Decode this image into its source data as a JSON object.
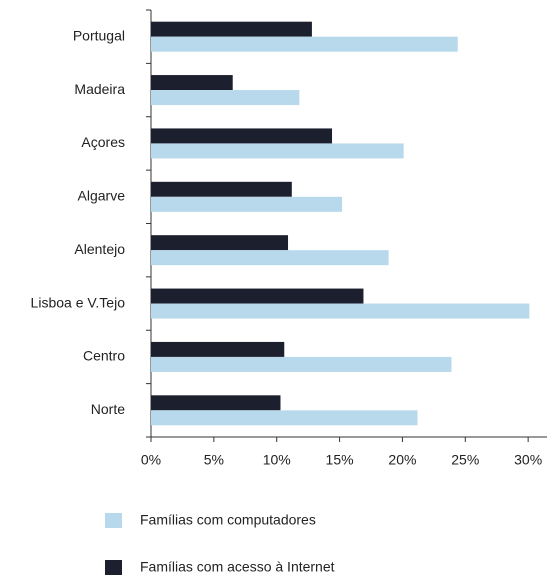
{
  "chart_data": {
    "type": "bar",
    "orientation": "horizontal",
    "categories": [
      "Portugal",
      "Madeira",
      "Açores",
      "Algarve",
      "Alentejo",
      "Lisboa e V.Tejo",
      "Centro",
      "Norte"
    ],
    "series": [
      {
        "name": "Famílias com computadores",
        "color": "#b8d9ec",
        "values": [
          24.4,
          11.8,
          20.1,
          15.2,
          18.9,
          30.1,
          23.9,
          21.2
        ]
      },
      {
        "name": "Famílias com acesso à Internet",
        "color": "#1c1f2e",
        "values": [
          12.8,
          6.5,
          14.4,
          11.2,
          10.9,
          16.9,
          10.6,
          10.3
        ]
      }
    ],
    "xlim": [
      0,
      31.5
    ],
    "xticks": [
      {
        "value": 0,
        "label": "0%"
      },
      {
        "value": 5,
        "label": "5%"
      },
      {
        "value": 10,
        "label": "10%"
      },
      {
        "value": 15,
        "label": "15%"
      },
      {
        "value": 20,
        "label": "20%"
      },
      {
        "value": 25,
        "label": "25%"
      },
      {
        "value": 30,
        "label": "30%"
      }
    ],
    "grid": false,
    "legend": "bottom"
  }
}
